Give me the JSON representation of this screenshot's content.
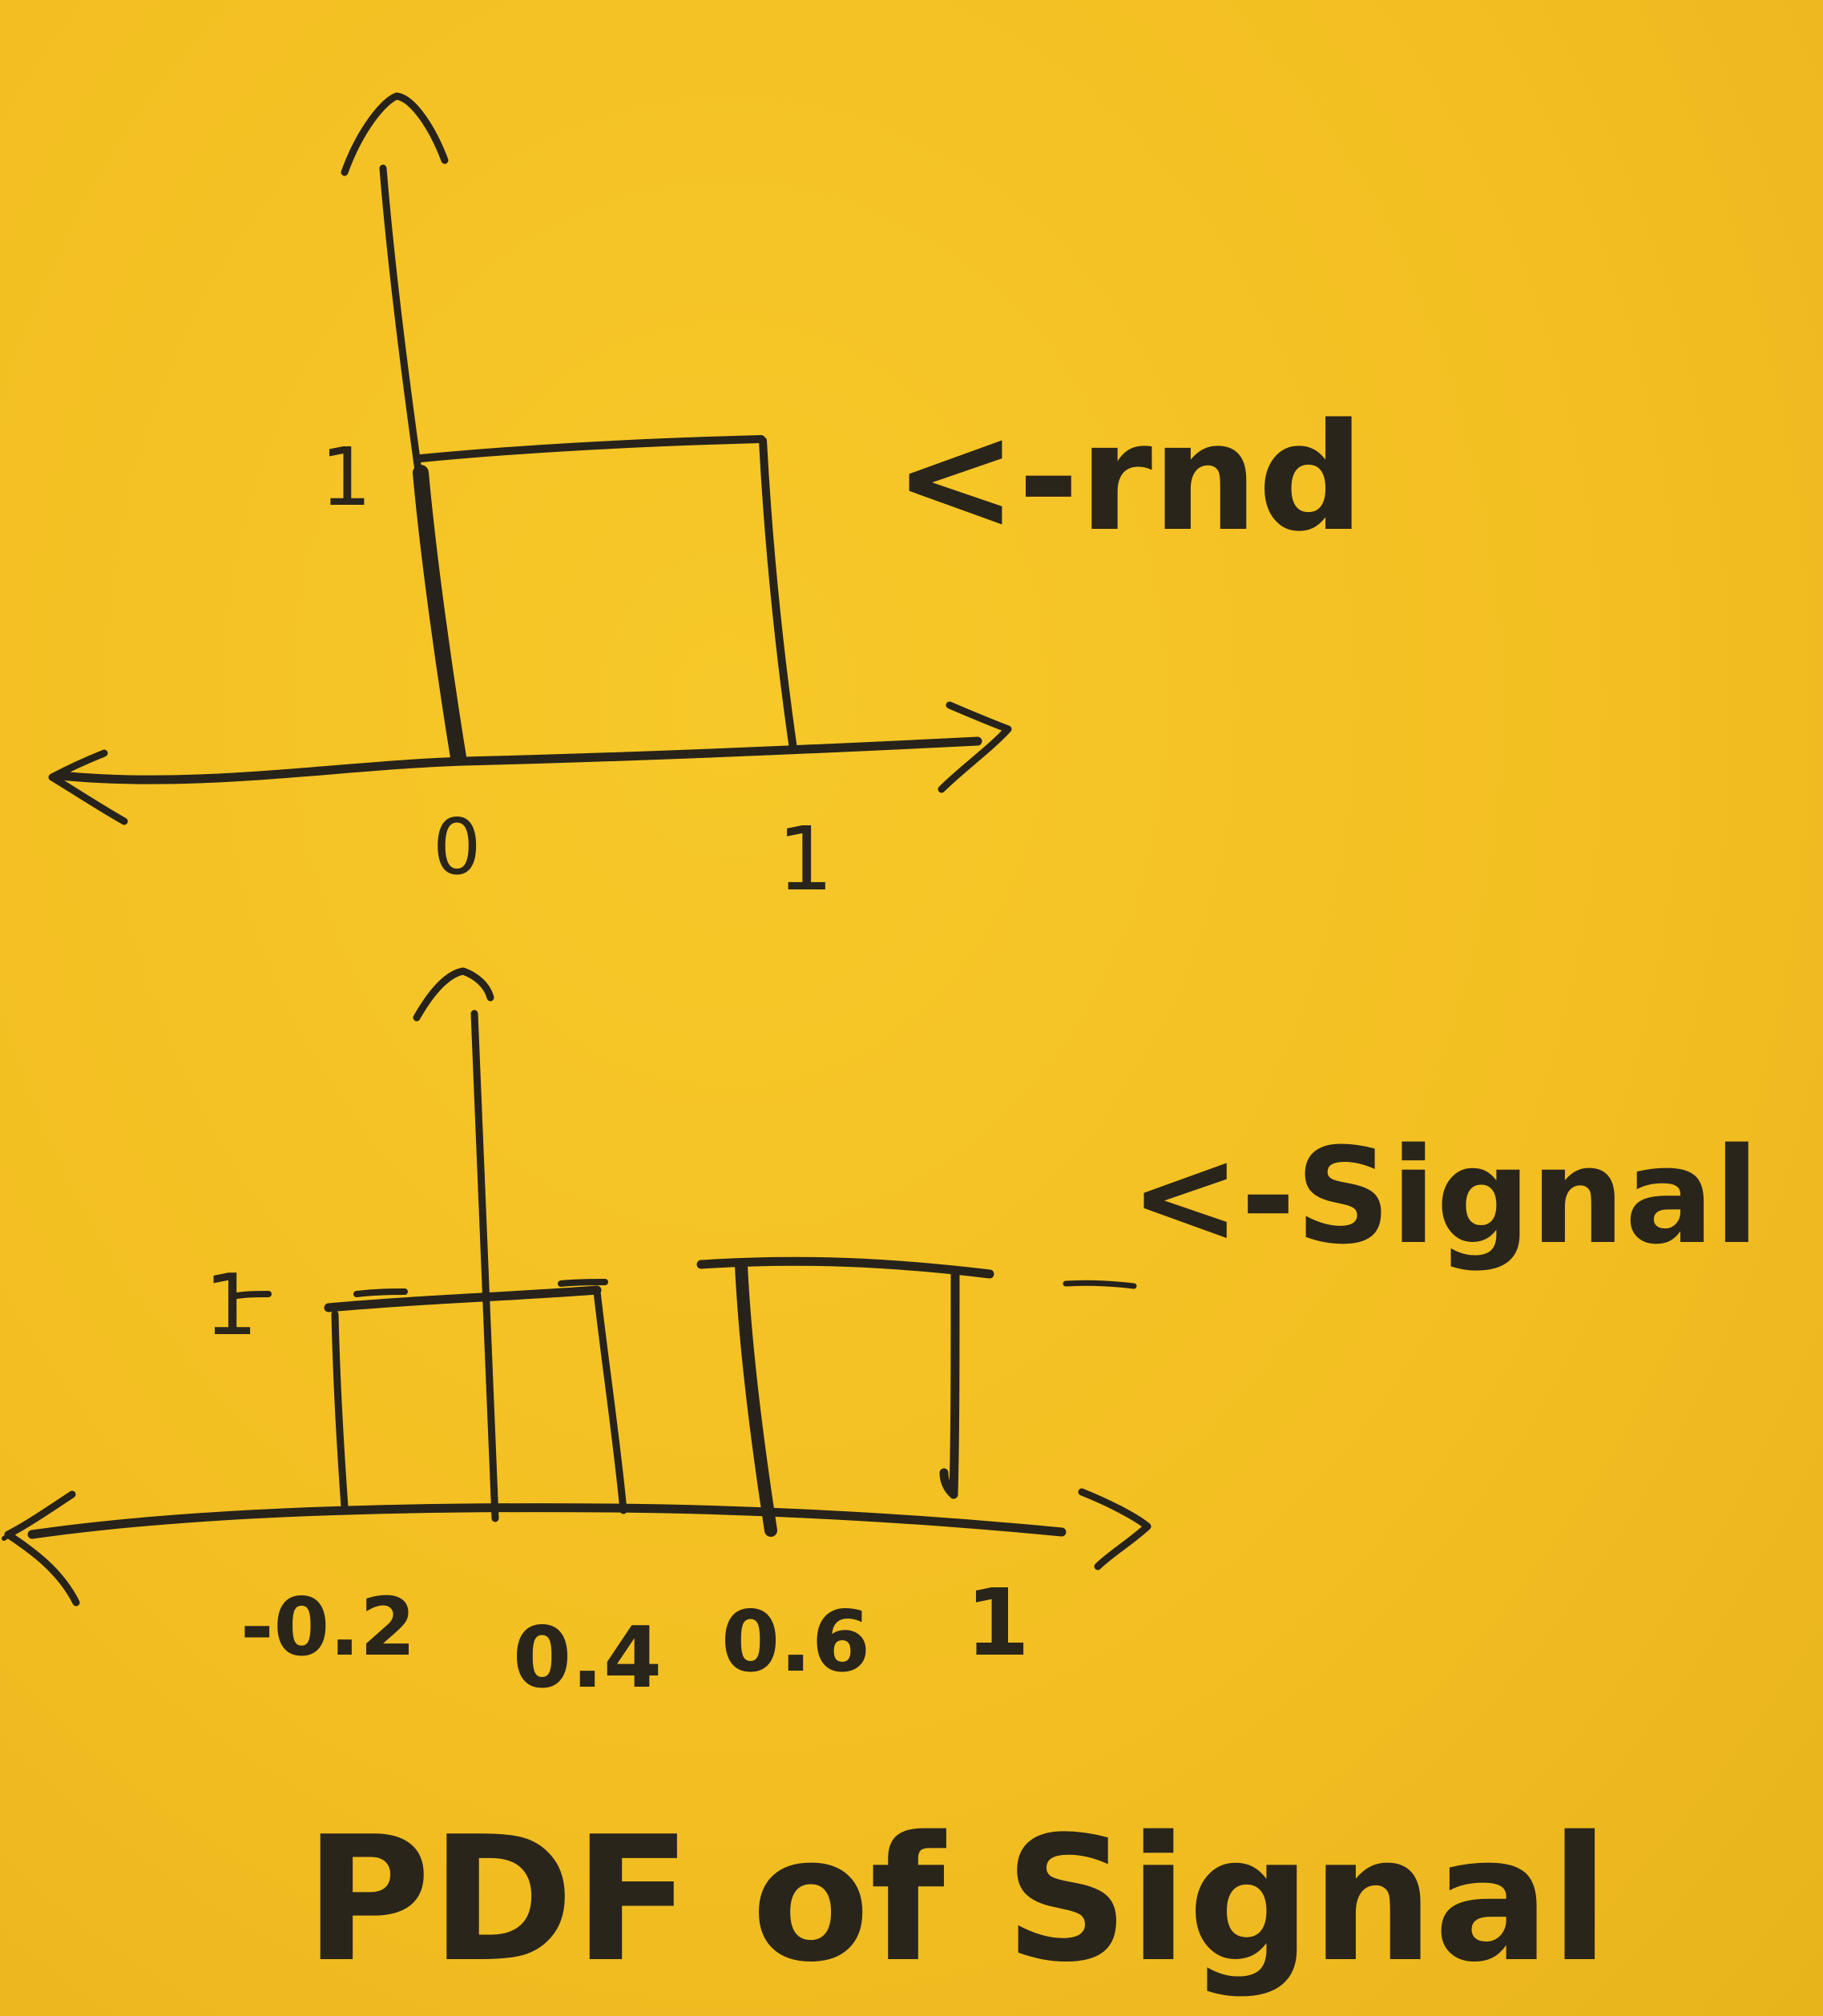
{
  "top_diagram": {
    "y_tick": "1",
    "x_ticks": [
      "0",
      "1"
    ],
    "label": "<-rnd"
  },
  "bottom_diagram": {
    "y_tick": "1",
    "x_ticks": [
      "-0.2",
      "0.4",
      "0.6",
      "1"
    ],
    "label": "<-Signal"
  },
  "caption": "PDF of Signal",
  "ink_color": "#27231a",
  "paper_color": "#f3bf22"
}
